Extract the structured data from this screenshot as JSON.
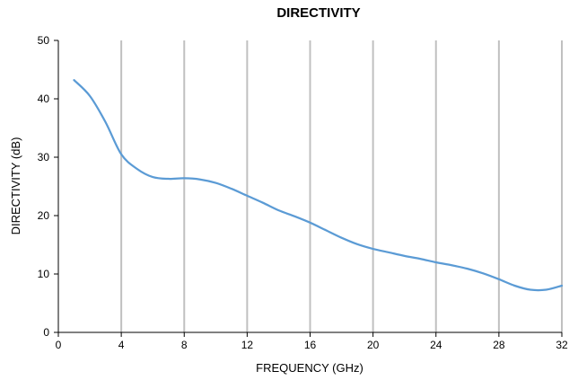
{
  "chart_data": {
    "type": "line",
    "title": "DIRECTIVITY",
    "xlabel": "FREQUENCY (GHz)",
    "ylabel": "DIRECTIVITY (dB)",
    "xlim": [
      0,
      32
    ],
    "ylim": [
      0,
      50
    ],
    "xticks": [
      0,
      4,
      8,
      12,
      16,
      20,
      24,
      28,
      32
    ],
    "yticks": [
      0,
      10,
      20,
      30,
      40,
      50
    ],
    "grid": "vertical",
    "legend": "none",
    "series": [
      {
        "color": "#5b9bd5",
        "x": [
          1,
          2,
          3,
          4,
          5,
          6,
          7,
          8,
          9,
          10,
          11,
          12,
          13,
          14,
          15,
          16,
          17,
          18,
          19,
          20,
          21,
          22,
          23,
          24,
          25,
          26,
          27,
          28,
          29,
          30,
          31,
          32
        ],
        "y": [
          43.2,
          40.5,
          36,
          30.5,
          28,
          26.6,
          26.3,
          26.4,
          26.2,
          25.6,
          24.6,
          23.4,
          22.2,
          20.9,
          19.9,
          18.8,
          17.5,
          16.2,
          15.1,
          14.3,
          13.7,
          13.1,
          12.6,
          12,
          11.5,
          10.9,
          10.1,
          9.1,
          8,
          7.3,
          7.3,
          8
        ]
      }
    ]
  }
}
